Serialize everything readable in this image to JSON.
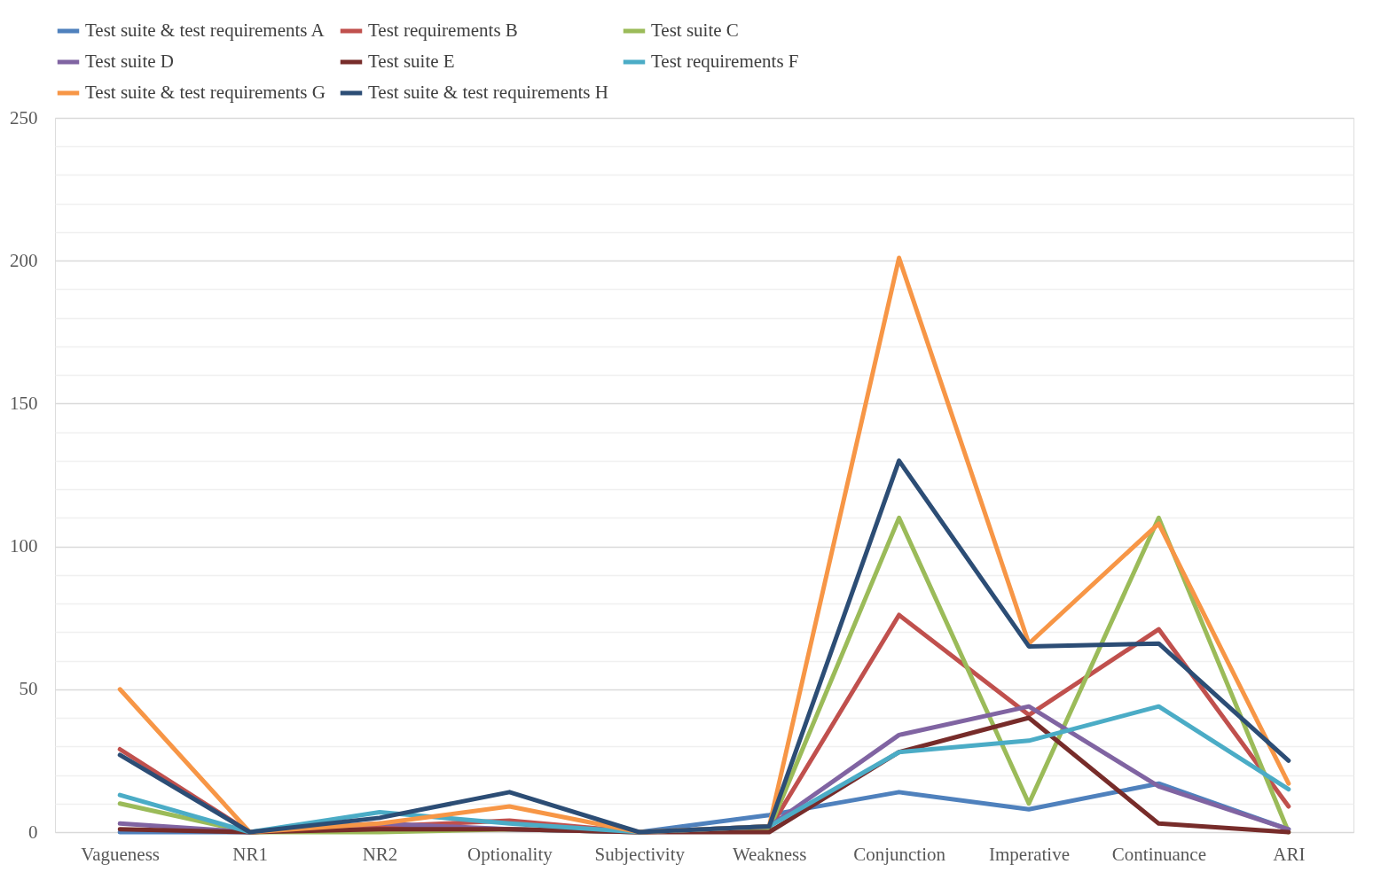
{
  "chart_data": {
    "type": "line",
    "categories": [
      "Vagueness",
      "NR1",
      "NR2",
      "Optionality",
      "Subjectivity",
      "Weakness",
      "Conjunction",
      "Imperative",
      "Continuance",
      "ARI"
    ],
    "series": [
      {
        "name": "Test suite & test requirements A",
        "color": "#4f81bd",
        "values": [
          0,
          0,
          2,
          1,
          0,
          6,
          14,
          8,
          17,
          1
        ]
      },
      {
        "name": "Test requirements B",
        "color": "#c0504d",
        "values": [
          29,
          0,
          2,
          4,
          0,
          1,
          76,
          41,
          71,
          9
        ]
      },
      {
        "name": "Test suite C",
        "color": "#9bbb59",
        "values": [
          10,
          0,
          0,
          1,
          0,
          1,
          110,
          10,
          110,
          0
        ]
      },
      {
        "name": "Test suite D",
        "color": "#8064a2",
        "values": [
          3,
          0,
          3,
          1,
          0,
          2,
          34,
          44,
          16,
          1
        ]
      },
      {
        "name": "Test suite E",
        "color": "#772c2a",
        "values": [
          1,
          0,
          1,
          1,
          0,
          0,
          28,
          40,
          3,
          0
        ]
      },
      {
        "name": "Test requirements F",
        "color": "#4bacc6",
        "values": [
          13,
          0,
          7,
          3,
          0,
          2,
          28,
          32,
          44,
          15
        ]
      },
      {
        "name": "Test suite & test requirements G",
        "color": "#f79646",
        "values": [
          50,
          0,
          3,
          9,
          0,
          2,
          201,
          66,
          108,
          17
        ]
      },
      {
        "name": "Test suite & test requirements H",
        "color": "#2c4d75",
        "values": [
          27,
          0,
          5,
          14,
          0,
          2,
          130,
          65,
          66,
          25
        ]
      }
    ],
    "ylim": [
      0,
      250
    ],
    "yticks": [
      0,
      {
        "value": 10,
        "label": null
      },
      {
        "value": 20,
        "label": null
      },
      {
        "value": 30,
        "label": null
      },
      {
        "value": 40,
        "label": null
      },
      50,
      {
        "value": 60,
        "label": null
      },
      {
        "value": 70,
        "label": null
      },
      {
        "value": 80,
        "label": null
      },
      {
        "value": 90,
        "label": null
      },
      100,
      {
        "value": 110,
        "label": null
      },
      {
        "value": 120,
        "label": null
      },
      {
        "value": 130,
        "label": null
      },
      {
        "value": 140,
        "label": null
      },
      150,
      {
        "value": 160,
        "label": null
      },
      {
        "value": 170,
        "label": null
      },
      {
        "value": 180,
        "label": null
      },
      {
        "value": 190,
        "label": null
      },
      200,
      {
        "value": 210,
        "label": null
      },
      {
        "value": 220,
        "label": null
      },
      {
        "value": 230,
        "label": null
      },
      {
        "value": 240,
        "label": null
      },
      250
    ],
    "grid": "y",
    "legend": "top",
    "marker": "none",
    "line_style": "solid"
  }
}
